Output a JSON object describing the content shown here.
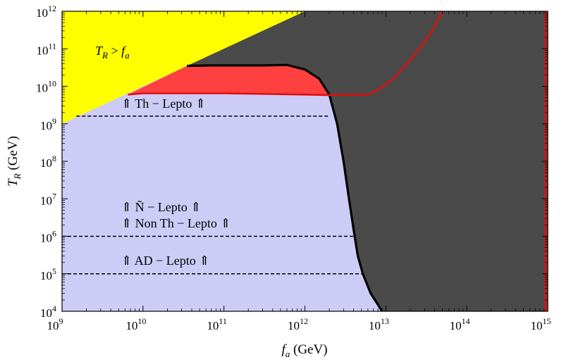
{
  "chart_data": {
    "type": "area",
    "title": "",
    "xlabel": "f_a (GeV)",
    "ylabel": "T_R (GeV)",
    "x_scale": "log",
    "y_scale": "log",
    "xlim": [
      1000000000.0,
      1000000000000000.0
    ],
    "ylim": [
      10000.0,
      1000000000000.0
    ],
    "x_ticks": [
      {
        "base": "10",
        "exp": "9",
        "value": 1000000000.0
      },
      {
        "base": "10",
        "exp": "10",
        "value": 10000000000.0
      },
      {
        "base": "10",
        "exp": "11",
        "value": 100000000000.0
      },
      {
        "base": "10",
        "exp": "12",
        "value": 1000000000000.0
      },
      {
        "base": "10",
        "exp": "13",
        "value": 10000000000000.0
      },
      {
        "base": "10",
        "exp": "14",
        "value": 100000000000000.0
      },
      {
        "base": "10",
        "exp": "15",
        "value": 1000000000000000.0
      }
    ],
    "y_ticks": [
      {
        "base": "10",
        "exp": "4",
        "value": 10000.0
      },
      {
        "base": "10",
        "exp": "5",
        "value": 100000.0
      },
      {
        "base": "10",
        "exp": "6",
        "value": 1000000.0
      },
      {
        "base": "10",
        "exp": "7",
        "value": 10000000.0
      },
      {
        "base": "10",
        "exp": "8",
        "value": 100000000.0
      },
      {
        "base": "10",
        "exp": "9",
        "value": 1000000000.0
      },
      {
        "base": "10",
        "exp": "10",
        "value": 10000000000.0
      },
      {
        "base": "10",
        "exp": "11",
        "value": 100000000000.0
      },
      {
        "base": "10",
        "exp": "12",
        "value": 1000000000000.0
      }
    ],
    "colors": {
      "allowed": "#ccccf7",
      "excluded_dark": "#4a4a4a",
      "tr_gt_fa": "#ffff00",
      "red_region": "#ff4040",
      "red_line": "#dd1010",
      "black_boundary": "#000000"
    },
    "regions": {
      "tr_gt_fa": {
        "label": "T_R > f_a",
        "boundary": [
          [
            1000000000.0,
            1000000000.0
          ],
          [
            1000000000000.0,
            1000000000000.0
          ]
        ]
      },
      "black_boundary": {
        "points": [
          [
            35000000000.0,
            35000000000.0
          ],
          [
            70000000000.0,
            36000000000.0
          ],
          [
            300000000000.0,
            36000000000.0
          ],
          [
            600000000000.0,
            37000000000.0
          ],
          [
            1000000000000.0,
            28000000000.0
          ],
          [
            1500000000000.0,
            16000000000.0
          ],
          [
            2000000000000.0,
            6000000000.0
          ],
          [
            2500000000000.0,
            1000000000.0
          ],
          [
            3000000000000.0,
            100000000.0
          ],
          [
            3500000000000.0,
            10000000.0
          ],
          [
            4000000000000.0,
            1500000.0
          ],
          [
            4500000000000.0,
            300000.0
          ],
          [
            5200000000000.0,
            100000.0
          ],
          [
            6500000000000.0,
            30000.0
          ],
          [
            9000000000000.0,
            10000.0
          ]
        ]
      },
      "red_band_lower": {
        "points": [
          [
            6500000000.0,
            6000000000.0
          ],
          [
            10000000000.0,
            6500000000.0
          ],
          [
            100000000000.0,
            6500000000.0
          ],
          [
            1000000000000.0,
            6000000000.0
          ],
          [
            2000000000000.0,
            5800000000.0
          ],
          [
            3000000000000.0,
            6000000000.0
          ],
          [
            6000000000000.0,
            6000000000.0
          ]
        ]
      },
      "red_line": {
        "points": [
          [
            6000000000000.0,
            6000000000.0
          ],
          [
            8000000000000.0,
            8000000000.0
          ],
          [
            12000000000000.0,
            15000000000.0
          ],
          [
            20000000000000.0,
            50000000000.0
          ],
          [
            30000000000000.0,
            150000000000.0
          ],
          [
            40000000000000.0,
            400000000000.0
          ],
          [
            50000000000000.0,
            1000000000000.0
          ]
        ]
      },
      "red_vertical_line": {
        "x": 1000000000000000.0
      }
    },
    "reference_lines": [
      {
        "label_text": "⇑ Th − Lepto ⇑",
        "y": 1600000000.0,
        "x_start": 1500000000.0,
        "x_end": 2000000000000.0
      },
      {
        "label_text": "⇑ Non Th − Lepto ⇑",
        "y": 1000000.0,
        "x_start": 1000000000.0,
        "x_end": 4000000000000.0
      },
      {
        "label_text": "⇑ AD − Lepto ⇑",
        "y": 100000.0,
        "x_start": 1000000000.0,
        "x_end": 5200000000000.0
      }
    ],
    "annotations": {
      "tr_gt_fa": "T_R > f_a",
      "n_tilde_lepto": "⇑ Ñ − Lepto ⇑"
    }
  }
}
